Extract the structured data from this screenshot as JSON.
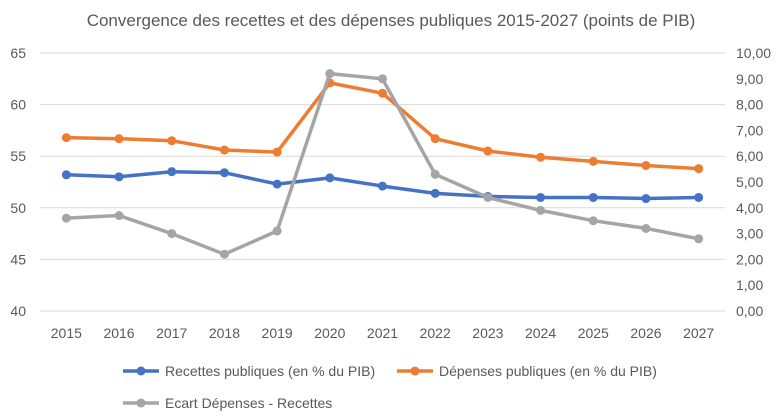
{
  "chart_data": {
    "type": "line",
    "title": "Convergence des recettes et des dépenses publiques 2015-2027 (points de PIB)",
    "categories": [
      "2015",
      "2016",
      "2017",
      "2018",
      "2019",
      "2020",
      "2021",
      "2022",
      "2023",
      "2024",
      "2025",
      "2026",
      "2027"
    ],
    "y_left": {
      "min": 40,
      "max": 65,
      "ticks": [
        "40",
        "45",
        "50",
        "55",
        "60",
        "65"
      ]
    },
    "y_right": {
      "min": 0,
      "max": 10,
      "ticks": [
        "0,00",
        "1,00",
        "2,00",
        "3,00",
        "4,00",
        "5,00",
        "6,00",
        "7,00",
        "8,00",
        "9,00",
        "10,00"
      ]
    },
    "grid": true,
    "legend_position": "bottom",
    "series": [
      {
        "name": "Recettes publiques (en % du PIB)",
        "axis": "left",
        "color": "#4472C4",
        "values": [
          53.2,
          53.0,
          53.5,
          53.4,
          52.3,
          52.9,
          52.1,
          51.4,
          51.1,
          51.0,
          51.0,
          50.9,
          51.0
        ]
      },
      {
        "name": "Dépenses publiques (en % du PIB)",
        "axis": "left",
        "color": "#ED7D31",
        "values": [
          56.8,
          56.7,
          56.5,
          55.6,
          55.4,
          62.1,
          61.1,
          56.7,
          55.5,
          54.9,
          54.5,
          54.1,
          53.8
        ]
      },
      {
        "name": "Ecart Dépenses - Recettes",
        "axis": "right",
        "color": "#A5A5A5",
        "values": [
          3.6,
          3.7,
          3.0,
          2.2,
          3.1,
          9.2,
          9.0,
          5.3,
          4.4,
          3.9,
          3.5,
          3.2,
          2.8
        ]
      }
    ]
  }
}
